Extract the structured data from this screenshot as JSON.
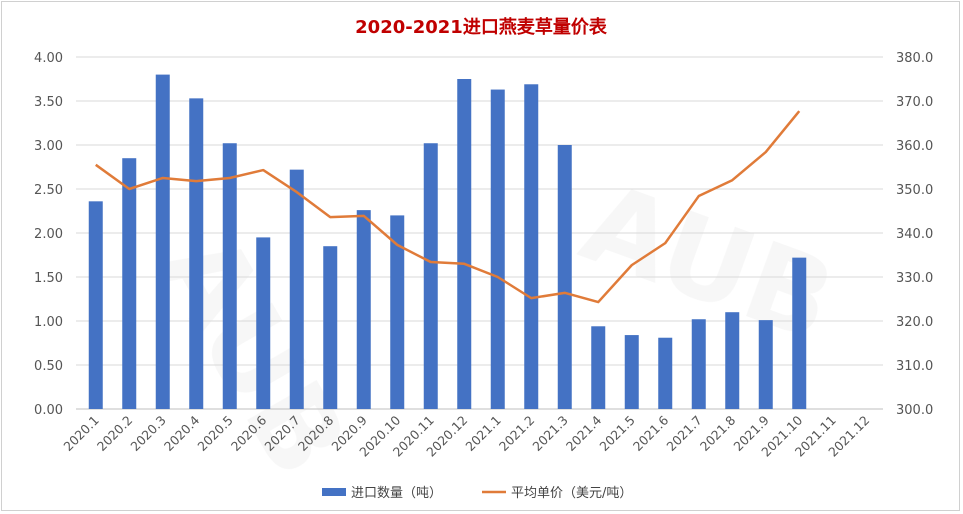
{
  "chart_data": {
    "type": "bar+line",
    "title": "2020-2021进口燕麦草量价表",
    "categories": [
      "2020.1",
      "2020.2",
      "2020.3",
      "2020.4",
      "2020.5",
      "2020.6",
      "2020.7",
      "2020.8",
      "2020.9",
      "2020.10",
      "2020.11",
      "2020.12",
      "2021.1",
      "2021.2",
      "2021.3",
      "2021.4",
      "2021.5",
      "2021.6",
      "2021.7",
      "2021.8",
      "2021.9",
      "2021.10",
      "2021.11",
      "2021.12"
    ],
    "series": [
      {
        "name": "进口数量（吨）",
        "type": "bar",
        "axis": "left",
        "color": "#4472c4",
        "values": [
          2.36,
          2.85,
          3.8,
          3.53,
          3.02,
          1.95,
          2.72,
          1.85,
          2.26,
          2.2,
          3.02,
          3.75,
          3.63,
          3.69,
          3.0,
          0.94,
          0.84,
          0.81,
          1.02,
          1.1,
          1.01,
          1.72,
          null,
          null
        ]
      },
      {
        "name": "平均单价（美元/吨）",
        "type": "line",
        "axis": "right",
        "color": "#e07b39",
        "values": [
          355.5,
          350.0,
          352.5,
          351.8,
          352.5,
          354.3,
          349.3,
          343.6,
          343.9,
          337.3,
          333.4,
          333.0,
          330.0,
          325.2,
          326.4,
          324.3,
          332.7,
          337.7,
          348.4,
          352.0,
          358.4,
          367.7,
          null,
          null
        ]
      }
    ],
    "y_left": {
      "range": [
        0,
        4
      ],
      "ticks": [
        "0.00",
        "0.50",
        "1.00",
        "1.50",
        "2.00",
        "2.50",
        "3.00",
        "3.50",
        "4.00"
      ]
    },
    "y_right": {
      "range": [
        300,
        380
      ],
      "ticks": [
        "300.0",
        "310.0",
        "320.0",
        "330.0",
        "340.0",
        "350.0",
        "360.0",
        "370.0",
        "380.0"
      ]
    },
    "grid": true,
    "legend": "bottom",
    "watermark": "AUB",
    "title_color": "#c00000"
  }
}
